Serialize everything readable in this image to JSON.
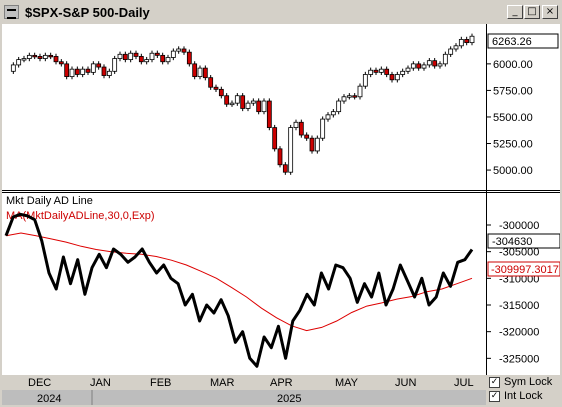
{
  "window": {
    "title": "$SPX-S&P 500-Daily",
    "buttons": {
      "minimize": "_",
      "maximize": "□",
      "close": "×"
    }
  },
  "icons": {
    "app": "chart-window-icon"
  },
  "price_panel": {
    "last_value": "6263.26",
    "y_ticks": [
      "6000.00",
      "5750.00",
      "5500.00",
      "5250.00",
      "5000.00"
    ]
  },
  "ad_panel": {
    "title": "Mkt Daily AD Line",
    "ma_label": "MA(MktDailyADLine,30,0,Exp)",
    "last_value": "-304630",
    "ma_last_value": "-309997.3017",
    "y_ticks": [
      "-300000",
      "-305000",
      "-310000",
      "-315000",
      "-320000",
      "-325000"
    ]
  },
  "time_axis": {
    "months": [
      "DEC",
      "JAN",
      "FEB",
      "MAR",
      "APR",
      "MAY",
      "JUN",
      "JUL"
    ],
    "years": [
      "2024",
      "2025"
    ]
  },
  "locks": {
    "sym_lock": "Sym Lock",
    "int_lock": "Int Lock",
    "sym_checked": true,
    "int_checked": true
  },
  "chart_data": [
    {
      "type": "line",
      "title": "$SPX-S&P 500-Daily",
      "series": [
        {
          "name": "$SPX",
          "values": [
            5930,
            5990,
            6040,
            6050,
            6080,
            6070,
            6050,
            6080,
            6070,
            6020,
            6000,
            5880,
            5950,
            5900,
            5950,
            5920,
            6000,
            5970,
            5890,
            5930,
            6050,
            6090,
            6040,
            6100,
            6070,
            6020,
            6040,
            6100,
            6080,
            6020,
            6060,
            6120,
            6140,
            6110,
            6000,
            5880,
            5960,
            5870,
            5780,
            5760,
            5700,
            5620,
            5630,
            5700,
            5580,
            5630,
            5650,
            5550,
            5650,
            5400,
            5200,
            5050,
            4980,
            5400,
            5450,
            5330,
            5300,
            5180,
            5300,
            5480,
            5520,
            5550,
            5650,
            5690,
            5700,
            5690,
            5790,
            5900,
            5940,
            5920,
            5950,
            5900,
            5850,
            5900,
            5930,
            5960,
            6000,
            5960,
            5990,
            6030,
            5980,
            6000,
            6090,
            6140,
            6170,
            6230,
            6200,
            6260
          ]
        }
      ],
      "ylim": [
        4850,
        6300
      ]
    },
    {
      "type": "line",
      "title": "Mkt Daily AD Line",
      "series": [
        {
          "name": "Mkt Daily AD Line",
          "values": [
            -302000,
            -298500,
            -298000,
            -298300,
            -299000,
            -303000,
            -309000,
            -312000,
            -306000,
            -311000,
            -306500,
            -313000,
            -308000,
            -305500,
            -308000,
            -304500,
            -305500,
            -307000,
            -306000,
            -304500,
            -307000,
            -309000,
            -307500,
            -310000,
            -311000,
            -315000,
            -313000,
            -318000,
            -315000,
            -316500,
            -314000,
            -317000,
            -322000,
            -320000,
            -325000,
            -326500,
            -321000,
            -323000,
            -319000,
            -325000,
            -318000,
            -316000,
            -313000,
            -315000,
            -309000,
            -312000,
            -307500,
            -308000,
            -310000,
            -314500,
            -311000,
            -313500,
            -309000,
            -315000,
            -312000,
            -307500,
            -310500,
            -313500,
            -310000,
            -315000,
            -313500,
            -309000,
            -311500,
            -307000,
            -306500,
            -304600
          ]
        },
        {
          "name": "MA(MktDailyADLine,30,0,Exp)",
          "values": [
            -302000,
            -301500,
            -302000,
            -302600,
            -303200,
            -304000,
            -304600,
            -305000,
            -305300,
            -305500,
            -305900,
            -306600,
            -307500,
            -308700,
            -310000,
            -311700,
            -313500,
            -315600,
            -317400,
            -318900,
            -319800,
            -319200,
            -318000,
            -316400,
            -315200,
            -314600,
            -313900,
            -313400,
            -312500,
            -312000,
            -311000,
            -310000
          ]
        }
      ],
      "ylim": [
        -327000,
        -297000
      ]
    }
  ]
}
